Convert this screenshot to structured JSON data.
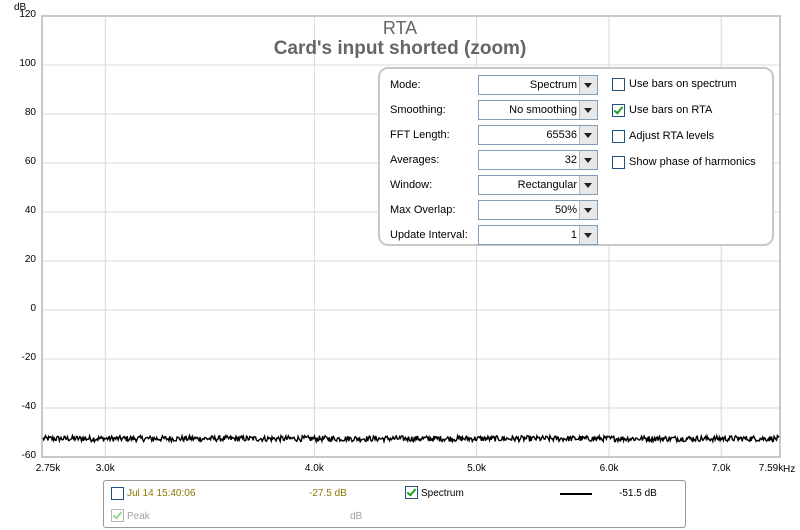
{
  "chart_data": {
    "type": "line",
    "title": "RTA",
    "subtitle": "Card's input shorted (zoom)",
    "ylabel": "dB",
    "xlabel": "Hz",
    "ylim": [
      -60,
      120
    ],
    "xlim": [
      2750,
      7590
    ],
    "xscale": "log",
    "yticks": [
      "120",
      "100",
      "80",
      "60",
      "40",
      "20",
      "0",
      "-20",
      "-40",
      "-60"
    ],
    "xticks": [
      {
        "value": 2750,
        "label": "2.75k"
      },
      {
        "value": 3000,
        "label": "3.0k"
      },
      {
        "value": 4000,
        "label": "4.0k"
      },
      {
        "value": 5000,
        "label": "5.0k"
      },
      {
        "value": 6000,
        "label": "6.0k"
      },
      {
        "value": 7000,
        "label": "7.0k"
      },
      {
        "value": 7590,
        "label": "7.59k"
      }
    ],
    "grid": true,
    "series": [
      {
        "name": "Spectrum",
        "color": "#000000",
        "level_db": -52.5,
        "noise_db": 1.2
      }
    ]
  },
  "controls": {
    "mode_label": "Mode:",
    "mode_value": "Spectrum",
    "smoothing_label": "Smoothing:",
    "smoothing_value": "No  smoothing",
    "fft_label": "FFT Length:",
    "fft_value": "65536",
    "averages_label": "Averages:",
    "averages_value": "32",
    "window_label": "Window:",
    "window_value": "Rectangular",
    "overlap_label": "Max Overlap:",
    "overlap_value": "50%",
    "interval_label": "Update Interval:",
    "interval_value": "1",
    "chk_bars_spectrum": "Use bars on spectrum",
    "chk_bars_rta": "Use bars on RTA",
    "chk_adjust": "Adjust RTA levels",
    "chk_phase": "Show phase of harmonics"
  },
  "legend": {
    "date": "Jul 14 15:40:06",
    "date_value": "-27.5 dB",
    "spectrum_label": "Spectrum",
    "spectrum_value": "-51.5 dB",
    "peak_label": "Peak",
    "peak_value": "dB"
  },
  "colors": {
    "grid": "#d8d8d8",
    "frame": "#c8c8c8",
    "date_text": "#8b7a00",
    "disabled_text": "#a0a0a0"
  }
}
